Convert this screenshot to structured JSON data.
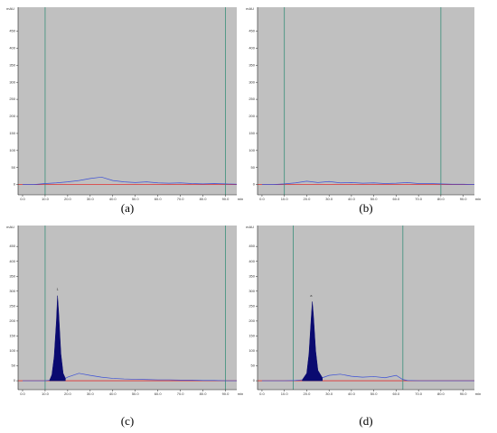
{
  "chart_data": [
    {
      "type": "line",
      "caption": "(a)",
      "x_label": "min",
      "y_label": "mAU",
      "xlim": [
        -2,
        95
      ],
      "ylim": [
        -30,
        520
      ],
      "xticks": [
        {
          "value": 0,
          "label": "0.0"
        },
        {
          "value": 10,
          "label": "10.0"
        },
        {
          "value": 20,
          "label": "20.0"
        },
        {
          "value": 30,
          "label": "30.0"
        },
        {
          "value": 40,
          "label": "40.0"
        },
        {
          "value": 50,
          "label": "50.0"
        },
        {
          "value": 60,
          "label": "60.0"
        },
        {
          "value": 70,
          "label": "70.0"
        },
        {
          "value": 80,
          "label": "80.0"
        },
        {
          "value": 90,
          "label": "90.0"
        }
      ],
      "yticks": [
        0,
        50,
        100,
        150,
        200,
        250,
        300,
        350,
        400,
        450
      ],
      "baseline": 0,
      "baseline_color": "#e03030",
      "markers": [
        10,
        90
      ],
      "marker_color": "#3a8f7a",
      "series": [
        {
          "color": "#3b4fd6",
          "fill": false,
          "x": [
            0,
            5,
            10,
            15,
            20,
            25,
            30,
            35,
            40,
            45,
            50,
            55,
            60,
            65,
            70,
            75,
            80,
            85,
            90,
            95
          ],
          "values": [
            0,
            0,
            3,
            5,
            8,
            12,
            18,
            22,
            12,
            8,
            6,
            8,
            5,
            4,
            5,
            3,
            2,
            3,
            2,
            1
          ]
        }
      ],
      "annotations": []
    },
    {
      "type": "line",
      "caption": "(b)",
      "x_label": "min",
      "y_label": "mAU",
      "xlim": [
        -2,
        95
      ],
      "ylim": [
        -30,
        520
      ],
      "xticks": [
        {
          "value": 0,
          "label": "0.0"
        },
        {
          "value": 10,
          "label": "10.0"
        },
        {
          "value": 20,
          "label": "20.0"
        },
        {
          "value": 30,
          "label": "30.0"
        },
        {
          "value": 40,
          "label": "40.0"
        },
        {
          "value": 50,
          "label": "50.0"
        },
        {
          "value": 60,
          "label": "60.0"
        },
        {
          "value": 70,
          "label": "70.0"
        },
        {
          "value": 80,
          "label": "80.0"
        },
        {
          "value": 90,
          "label": "90.0"
        }
      ],
      "yticks": [
        0,
        50,
        100,
        150,
        200,
        250,
        300,
        350,
        400,
        450
      ],
      "baseline": 0,
      "baseline_color": "#e03030",
      "markers": [
        10,
        80
      ],
      "marker_color": "#3a8f7a",
      "series": [
        {
          "color": "#3b4fd6",
          "fill": false,
          "x": [
            0,
            5,
            10,
            15,
            20,
            25,
            30,
            35,
            40,
            45,
            50,
            55,
            60,
            65,
            70,
            75,
            80,
            85,
            90,
            95
          ],
          "values": [
            0,
            0,
            2,
            5,
            10,
            6,
            9,
            5,
            6,
            4,
            5,
            3,
            4,
            6,
            3,
            3,
            2,
            1,
            1,
            0
          ]
        }
      ],
      "annotations": []
    },
    {
      "type": "line",
      "caption": "(c)",
      "x_label": "min",
      "y_label": "mAU",
      "xlim": [
        -2,
        95
      ],
      "ylim": [
        -30,
        520
      ],
      "xticks": [
        {
          "value": 0,
          "label": "0.0"
        },
        {
          "value": 10,
          "label": "10.0"
        },
        {
          "value": 20,
          "label": "20.0"
        },
        {
          "value": 30,
          "label": "30.0"
        },
        {
          "value": 40,
          "label": "40.0"
        },
        {
          "value": 50,
          "label": "50.0"
        },
        {
          "value": 60,
          "label": "60.0"
        },
        {
          "value": 70,
          "label": "70.0"
        },
        {
          "value": 80,
          "label": "80.0"
        },
        {
          "value": 90,
          "label": "90.0"
        }
      ],
      "yticks": [
        0,
        50,
        100,
        150,
        200,
        250,
        300,
        350,
        400,
        450
      ],
      "baseline": 0,
      "baseline_color": "#e03030",
      "markers": [
        10,
        90
      ],
      "marker_color": "#3a8f7a",
      "series": [
        {
          "color": "#3b4fd6",
          "fill": false,
          "x": [
            0,
            5,
            10,
            12,
            19,
            20,
            25,
            30,
            35,
            40,
            45,
            50,
            55,
            60,
            65,
            70,
            75,
            80,
            85,
            90,
            95
          ],
          "values": [
            0,
            0,
            0,
            2,
            8,
            12,
            25,
            18,
            12,
            8,
            6,
            5,
            4,
            3,
            3,
            2,
            2,
            1,
            1,
            0,
            0
          ]
        },
        {
          "color": "#0a0a70",
          "fill": true,
          "x": [
            12,
            13,
            14,
            15,
            15.5,
            16,
            17,
            18,
            19
          ],
          "values": [
            2,
            20,
            80,
            200,
            285,
            230,
            90,
            25,
            8
          ]
        }
      ],
      "annotations": [
        {
          "text": "1",
          "x": 15.5,
          "y": 305
        }
      ]
    },
    {
      "type": "line",
      "caption": "(d)",
      "x_label": "min",
      "y_label": "mAU",
      "xlim": [
        -2,
        95
      ],
      "ylim": [
        -30,
        520
      ],
      "xticks": [
        {
          "value": 0,
          "label": "0.0"
        },
        {
          "value": 10,
          "label": "10.0"
        },
        {
          "value": 20,
          "label": "20.0"
        },
        {
          "value": 30,
          "label": "30.0"
        },
        {
          "value": 40,
          "label": "40.0"
        },
        {
          "value": 50,
          "label": "50.0"
        },
        {
          "value": 60,
          "label": "60.0"
        },
        {
          "value": 70,
          "label": "70.0"
        },
        {
          "value": 80,
          "label": "80.0"
        },
        {
          "value": 90,
          "label": "90.0"
        }
      ],
      "yticks": [
        0,
        50,
        100,
        150,
        200,
        250,
        300,
        350,
        400,
        450
      ],
      "baseline": 0,
      "baseline_color": "#e03030",
      "markers": [
        14,
        63
      ],
      "marker_color": "#3a8f7a",
      "series": [
        {
          "color": "#3b4fd6",
          "fill": false,
          "x": [
            0,
            5,
            10,
            15,
            18,
            27,
            30,
            35,
            40,
            45,
            50,
            55,
            60,
            63,
            65,
            70,
            75,
            80,
            85,
            90,
            95
          ],
          "values": [
            0,
            0,
            0,
            1,
            3,
            10,
            18,
            22,
            15,
            12,
            14,
            10,
            18,
            4,
            1,
            0,
            0,
            0,
            0,
            0,
            0
          ]
        },
        {
          "color": "#0a0a70",
          "fill": true,
          "x": [
            18,
            20,
            21,
            22,
            22.5,
            23,
            24,
            25,
            27
          ],
          "values": [
            3,
            25,
            90,
            210,
            265,
            220,
            100,
            35,
            10
          ]
        }
      ],
      "annotations": [
        {
          "text": "a",
          "x": 22,
          "y": 285
        }
      ]
    }
  ]
}
